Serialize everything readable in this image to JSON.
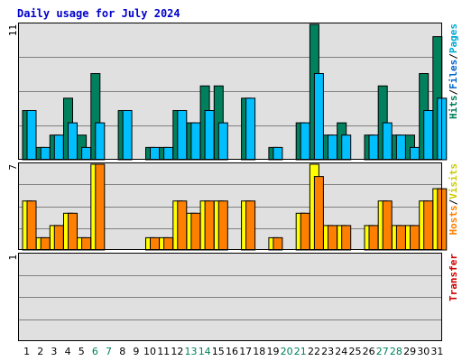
{
  "chart_data": {
    "type": "bar",
    "title": "Daily usage for July 2024",
    "days": [
      "1",
      "2",
      "3",
      "4",
      "5",
      "6",
      "7",
      "8",
      "9",
      "10",
      "11",
      "12",
      "13",
      "14",
      "15",
      "16",
      "17",
      "18",
      "19",
      "20",
      "21",
      "22",
      "23",
      "24",
      "25",
      "26",
      "27",
      "28",
      "29",
      "30",
      "31"
    ],
    "weekend_days": [
      "6",
      "7",
      "13",
      "14",
      "20",
      "21",
      "27",
      "28"
    ],
    "panels": [
      {
        "name": "hits-files-pages",
        "ymax_label": "11",
        "ymax": 11,
        "series": [
          {
            "name": "Hits",
            "color": "#00805c",
            "values": [
              4,
              1,
              2,
              5,
              2,
              7,
              0,
              4,
              0,
              1,
              1,
              4,
              3,
              6,
              6,
              0,
              5,
              0,
              1,
              0,
              3,
              11,
              2,
              3,
              0,
              2,
              6,
              2,
              2,
              7,
              10
            ]
          },
          {
            "name": "Files",
            "color": "#00bfff",
            "values": [
              4,
              1,
              2,
              3,
              1,
              3,
              0,
              4,
              0,
              1,
              1,
              4,
              3,
              4,
              3,
              0,
              5,
              0,
              1,
              0,
              3,
              7,
              2,
              2,
              0,
              2,
              3,
              2,
              1,
              4,
              5
            ]
          }
        ],
        "legend": [
          {
            "text": "Hits",
            "color": "#00805c"
          },
          {
            "text": "/",
            "color": "#000000"
          },
          {
            "text": "Files",
            "color": "#0066cc"
          },
          {
            "text": "/",
            "color": "#000000"
          },
          {
            "text": "Pages",
            "color": "#00aad4"
          }
        ]
      },
      {
        "name": "hosts-visits",
        "ymax_label": "7",
        "ymax": 7,
        "series": [
          {
            "name": "Visits",
            "color": "#ffff00",
            "values": [
              4,
              1,
              2,
              3,
              1,
              7,
              0,
              0,
              0,
              1,
              1,
              4,
              3,
              4,
              4,
              0,
              4,
              0,
              1,
              0,
              3,
              7,
              2,
              2,
              0,
              2,
              4,
              2,
              2,
              4,
              5
            ]
          },
          {
            "name": "Hosts",
            "color": "#ff8000",
            "values": [
              4,
              1,
              2,
              3,
              1,
              7,
              0,
              0,
              0,
              1,
              1,
              4,
              3,
              4,
              4,
              0,
              4,
              0,
              1,
              0,
              3,
              6,
              2,
              2,
              0,
              2,
              4,
              2,
              2,
              4,
              5
            ]
          }
        ],
        "legend": [
          {
            "text": "Hosts",
            "color": "#ff8000"
          },
          {
            "text": "/",
            "color": "#000000"
          },
          {
            "text": "Visits",
            "color": "#cccc00"
          }
        ]
      },
      {
        "name": "transfer",
        "ymax_label": "1",
        "ymax": 1,
        "series": [
          {
            "name": "Transfer",
            "color": "#ff0000",
            "values": [
              0,
              0,
              0,
              0,
              0,
              0,
              0,
              0,
              0,
              0,
              0,
              0,
              0,
              0,
              0,
              0,
              0,
              0,
              0,
              0,
              0,
              0,
              0,
              0,
              0,
              0,
              0,
              0,
              0,
              0,
              0
            ]
          }
        ],
        "legend": [
          {
            "text": "Transfer",
            "color": "#cc0000"
          }
        ]
      }
    ],
    "colors": {
      "background": "#e0e0e0",
      "gridline": "#808080",
      "weekday_label": "#000000",
      "weekend_label": "#00805c"
    }
  }
}
